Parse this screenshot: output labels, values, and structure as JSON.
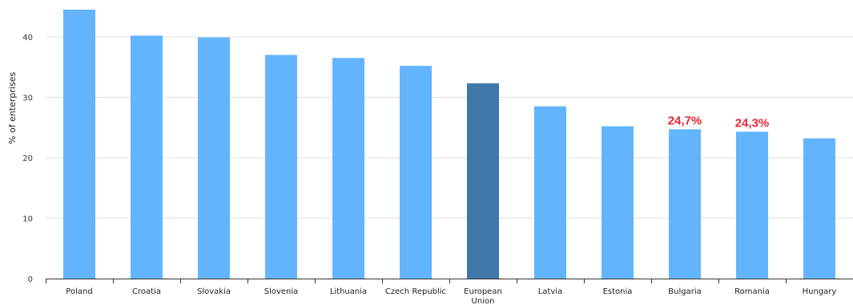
{
  "chart_data": {
    "type": "bar",
    "title": "",
    "xlabel": "",
    "ylabel": "% of enterprises",
    "ylim": [
      0,
      45
    ],
    "yticks": [
      "0",
      "10",
      "20",
      "30",
      "40"
    ],
    "grid": true,
    "categories": [
      [
        "Poland"
      ],
      [
        "Croatia"
      ],
      [
        "Slovakia"
      ],
      [
        "Slovenia"
      ],
      [
        "Lithuania"
      ],
      [
        "Czech Republic"
      ],
      [
        "European",
        "Union"
      ],
      [
        "Latvia"
      ],
      [
        "Estonia"
      ],
      [
        "Bulgaria"
      ],
      [
        "Romania"
      ],
      [
        "Hungary"
      ]
    ],
    "values": [
      44.5,
      40.2,
      39.9,
      37.0,
      36.5,
      35.2,
      32.3,
      28.5,
      25.2,
      24.7,
      24.3,
      23.2
    ],
    "data_labels": [
      "",
      "",
      "",
      "",
      "",
      "",
      "",
      "",
      "",
      "24,7%",
      "24,3%",
      ""
    ],
    "colors": {
      "bar": "#62b5fc",
      "highlight_bar": "#3f78a8",
      "highlight_index": 6,
      "grid": "#dddddd",
      "axis": "#333333",
      "label": "#e8242e"
    }
  }
}
